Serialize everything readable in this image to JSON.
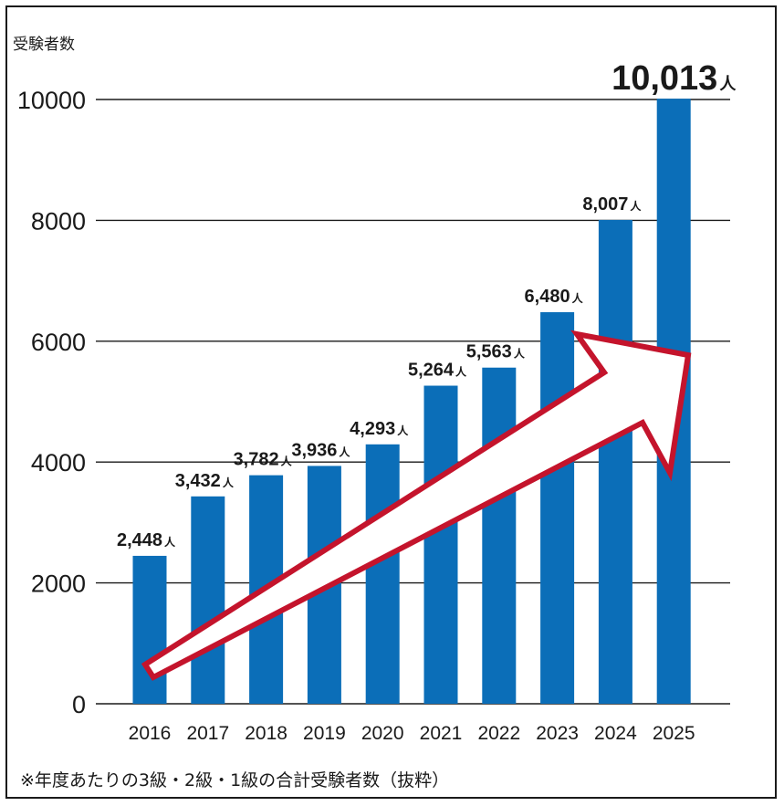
{
  "chart_data": {
    "type": "bar",
    "ylabel": "受験者数",
    "categories": [
      "2016",
      "2017",
      "2018",
      "2019",
      "2020",
      "2021",
      "2022",
      "2023",
      "2024",
      "2025"
    ],
    "values": [
      2448,
      3432,
      3782,
      3936,
      4293,
      5264,
      5563,
      6480,
      8007,
      10013
    ],
    "data_labels": [
      "2,448",
      "3,432",
      "3,782",
      "3,936",
      "4,293",
      "5,264",
      "5,563",
      "6,480",
      "8,007",
      "10,013"
    ],
    "data_label_unit": "人",
    "yticks": [
      "0",
      "2000",
      "4000",
      "6000",
      "8000",
      "10000"
    ],
    "ylim": [
      0,
      10000
    ],
    "grid": true,
    "bar_color": "#0b6eb8",
    "arrow_color": "#c4142c",
    "footnote": "※年度あたりの3級・2級・1級の合計受験者数（抜粋）"
  }
}
